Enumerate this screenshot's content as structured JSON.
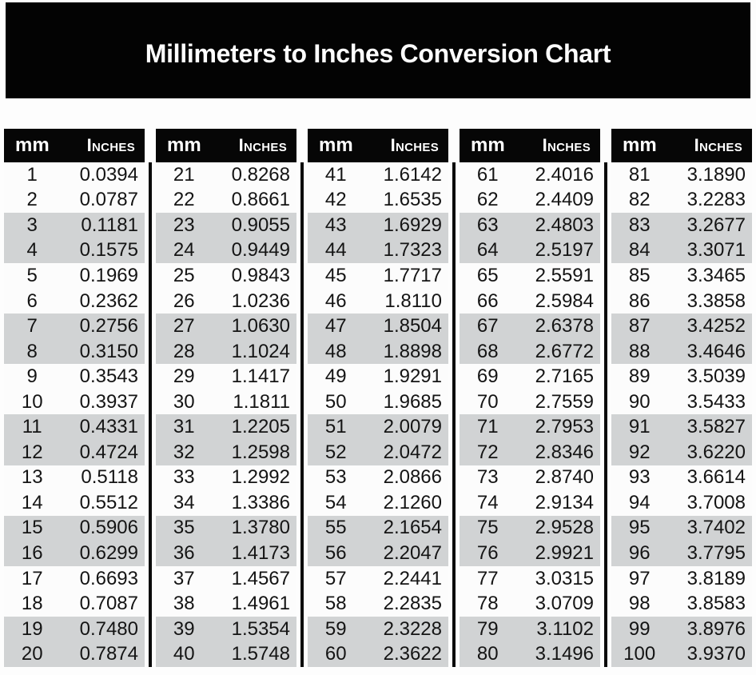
{
  "title": "Millimeters to Inches Conversion Chart",
  "chart_data": {
    "type": "table",
    "title": "Millimeters to Inches Conversion Chart",
    "column_headers": [
      "mm",
      "Inches"
    ],
    "tables": [
      {
        "mm_range": "1-20",
        "rows": [
          [
            1,
            "0.0394"
          ],
          [
            2,
            "0.0787"
          ],
          [
            3,
            "0.1181"
          ],
          [
            4,
            "0.1575"
          ],
          [
            5,
            "0.1969"
          ],
          [
            6,
            "0.2362"
          ],
          [
            7,
            "0.2756"
          ],
          [
            8,
            "0.3150"
          ],
          [
            9,
            "0.3543"
          ],
          [
            10,
            "0.3937"
          ],
          [
            11,
            "0.4331"
          ],
          [
            12,
            "0.4724"
          ],
          [
            13,
            "0.5118"
          ],
          [
            14,
            "0.5512"
          ],
          [
            15,
            "0.5906"
          ],
          [
            16,
            "0.6299"
          ],
          [
            17,
            "0.6693"
          ],
          [
            18,
            "0.7087"
          ],
          [
            19,
            "0.7480"
          ],
          [
            20,
            "0.7874"
          ]
        ]
      },
      {
        "mm_range": "21-40",
        "rows": [
          [
            21,
            "0.8268"
          ],
          [
            22,
            "0.8661"
          ],
          [
            23,
            "0.9055"
          ],
          [
            24,
            "0.9449"
          ],
          [
            25,
            "0.9843"
          ],
          [
            26,
            "1.0236"
          ],
          [
            27,
            "1.0630"
          ],
          [
            28,
            "1.1024"
          ],
          [
            29,
            "1.1417"
          ],
          [
            30,
            "1.1811"
          ],
          [
            31,
            "1.2205"
          ],
          [
            32,
            "1.2598"
          ],
          [
            33,
            "1.2992"
          ],
          [
            34,
            "1.3386"
          ],
          [
            35,
            "1.3780"
          ],
          [
            36,
            "1.4173"
          ],
          [
            37,
            "1.4567"
          ],
          [
            38,
            "1.4961"
          ],
          [
            39,
            "1.5354"
          ],
          [
            40,
            "1.5748"
          ]
        ]
      },
      {
        "mm_range": "41-60",
        "rows": [
          [
            41,
            "1.6142"
          ],
          [
            42,
            "1.6535"
          ],
          [
            43,
            "1.6929"
          ],
          [
            44,
            "1.7323"
          ],
          [
            45,
            "1.7717"
          ],
          [
            46,
            "1.8110"
          ],
          [
            47,
            "1.8504"
          ],
          [
            48,
            "1.8898"
          ],
          [
            49,
            "1.9291"
          ],
          [
            50,
            "1.9685"
          ],
          [
            51,
            "2.0079"
          ],
          [
            52,
            "2.0472"
          ],
          [
            53,
            "2.0866"
          ],
          [
            54,
            "2.1260"
          ],
          [
            55,
            "2.1654"
          ],
          [
            56,
            "2.2047"
          ],
          [
            57,
            "2.2441"
          ],
          [
            58,
            "2.2835"
          ],
          [
            59,
            "2.3228"
          ],
          [
            60,
            "2.3622"
          ]
        ]
      },
      {
        "mm_range": "61-80",
        "rows": [
          [
            61,
            "2.4016"
          ],
          [
            62,
            "2.4409"
          ],
          [
            63,
            "2.4803"
          ],
          [
            64,
            "2.5197"
          ],
          [
            65,
            "2.5591"
          ],
          [
            66,
            "2.5984"
          ],
          [
            67,
            "2.6378"
          ],
          [
            68,
            "2.6772"
          ],
          [
            69,
            "2.7165"
          ],
          [
            70,
            "2.7559"
          ],
          [
            71,
            "2.7953"
          ],
          [
            72,
            "2.8346"
          ],
          [
            73,
            "2.8740"
          ],
          [
            74,
            "2.9134"
          ],
          [
            75,
            "2.9528"
          ],
          [
            76,
            "2.9921"
          ],
          [
            77,
            "3.0315"
          ],
          [
            78,
            "3.0709"
          ],
          [
            79,
            "3.1102"
          ],
          [
            80,
            "3.1496"
          ]
        ]
      },
      {
        "mm_range": "81-100",
        "rows": [
          [
            81,
            "3.1890"
          ],
          [
            82,
            "3.2283"
          ],
          [
            83,
            "3.2677"
          ],
          [
            84,
            "3.3071"
          ],
          [
            85,
            "3.3465"
          ],
          [
            86,
            "3.3858"
          ],
          [
            87,
            "3.4252"
          ],
          [
            88,
            "3.4646"
          ],
          [
            89,
            "3.5039"
          ],
          [
            90,
            "3.5433"
          ],
          [
            91,
            "3.5827"
          ],
          [
            92,
            "3.6220"
          ],
          [
            93,
            "3.6614"
          ],
          [
            94,
            "3.7008"
          ],
          [
            95,
            "3.7402"
          ],
          [
            96,
            "3.7795"
          ],
          [
            97,
            "3.8189"
          ],
          [
            98,
            "3.8583"
          ],
          [
            99,
            "3.8976"
          ],
          [
            100,
            "3.9370"
          ]
        ]
      }
    ]
  },
  "colors": {
    "banner_background": "#030303",
    "header_background": "#060606",
    "header_text": "#ffffff",
    "row_stripe": "#d1d3d4",
    "row_plain": "#fcfcfc",
    "data_text": "#141414"
  }
}
